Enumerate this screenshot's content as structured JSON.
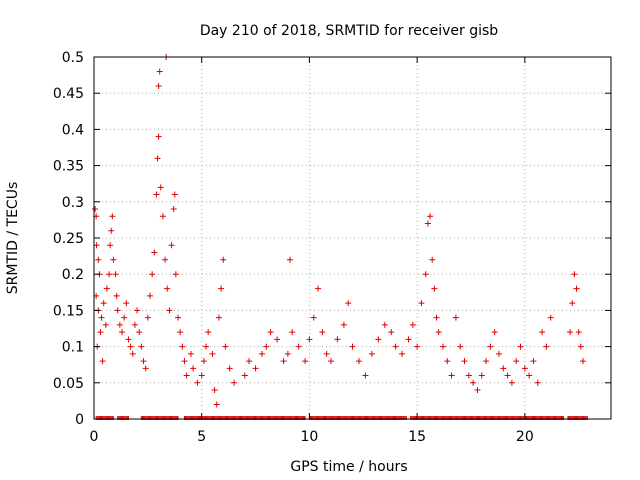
{
  "chart_data": {
    "type": "scatter",
    "title": "Day 210 of 2018, SRMTID for receiver gisb",
    "xlabel": "GPS time / hours",
    "ylabel": "SRMTID / TECUs",
    "xlim": [
      0,
      24
    ],
    "ylim": [
      0,
      0.5
    ],
    "x_ticks": [
      0,
      5,
      10,
      15,
      20
    ],
    "x_tick_labels": [
      "0",
      "5",
      "10",
      "15",
      "20"
    ],
    "y_ticks": [
      0,
      0.05,
      0.1,
      0.15,
      0.2,
      0.25,
      0.3,
      0.35,
      0.4,
      0.45,
      0.5
    ],
    "y_tick_labels": [
      "0",
      "0.05",
      "0.1",
      "0.15",
      "0.2",
      "0.25",
      "0.3",
      "0.35",
      "0.4",
      "0.45",
      "0.5"
    ],
    "grid": true,
    "marker": "+",
    "colors": {
      "series": "#e00000",
      "grid": "#b0b0b0",
      "axes": "#000000"
    },
    "series": [
      {
        "name": "SRMTID",
        "points": [
          [
            0.05,
            0.29
          ],
          [
            0.1,
            0.28
          ],
          [
            0.12,
            0.24
          ],
          [
            0.2,
            0.22
          ],
          [
            0.25,
            0.2
          ],
          [
            0.1,
            0.17
          ],
          [
            0.2,
            0.15
          ],
          [
            0.3,
            0.12
          ],
          [
            0.15,
            0.1
          ],
          [
            0.4,
            0.08
          ],
          [
            0.35,
            0.14
          ],
          [
            0.45,
            0.16
          ],
          [
            0.55,
            0.13
          ],
          [
            0.6,
            0.18
          ],
          [
            0.7,
            0.2
          ],
          [
            0.75,
            0.24
          ],
          [
            0.8,
            0.26
          ],
          [
            0.85,
            0.28
          ],
          [
            0.9,
            0.22
          ],
          [
            1.0,
            0.2
          ],
          [
            1.05,
            0.17
          ],
          [
            1.1,
            0.15
          ],
          [
            1.2,
            0.13
          ],
          [
            1.3,
            0.12
          ],
          [
            1.4,
            0.14
          ],
          [
            1.5,
            0.16
          ],
          [
            1.6,
            0.11
          ],
          [
            1.7,
            0.1
          ],
          [
            1.8,
            0.09
          ],
          [
            1.9,
            0.13
          ],
          [
            2.0,
            0.15
          ],
          [
            2.1,
            0.12
          ],
          [
            2.2,
            0.1
          ],
          [
            2.3,
            0.08
          ],
          [
            2.4,
            0.07
          ],
          [
            2.5,
            0.14
          ],
          [
            2.6,
            0.17
          ],
          [
            2.7,
            0.2
          ],
          [
            2.8,
            0.23
          ],
          [
            2.9,
            0.31
          ],
          [
            2.95,
            0.36
          ],
          [
            3.0,
            0.39
          ],
          [
            3.0,
            0.46
          ],
          [
            3.05,
            0.48
          ],
          [
            3.1,
            0.32
          ],
          [
            3.2,
            0.28
          ],
          [
            3.3,
            0.22
          ],
          [
            3.35,
            0.5
          ],
          [
            3.4,
            0.18
          ],
          [
            3.5,
            0.15
          ],
          [
            3.6,
            0.24
          ],
          [
            3.7,
            0.29
          ],
          [
            3.75,
            0.31
          ],
          [
            3.8,
            0.2
          ],
          [
            3.9,
            0.14
          ],
          [
            4.0,
            0.12
          ],
          [
            4.1,
            0.1
          ],
          [
            4.2,
            0.08
          ],
          [
            4.3,
            0.06
          ],
          [
            4.5,
            0.09
          ],
          [
            4.6,
            0.07
          ],
          [
            4.8,
            0.05
          ],
          [
            5.0,
            0.06
          ],
          [
            5.1,
            0.08
          ],
          [
            5.2,
            0.1
          ],
          [
            5.3,
            0.12
          ],
          [
            5.5,
            0.09
          ],
          [
            5.6,
            0.04
          ],
          [
            5.7,
            0.02
          ],
          [
            5.8,
            0.14
          ],
          [
            5.9,
            0.18
          ],
          [
            6.0,
            0.22
          ],
          [
            6.1,
            0.1
          ],
          [
            6.3,
            0.07
          ],
          [
            6.5,
            0.05
          ],
          [
            7.0,
            0.06
          ],
          [
            7.2,
            0.08
          ],
          [
            7.5,
            0.07
          ],
          [
            7.8,
            0.09
          ],
          [
            8.0,
            0.1
          ],
          [
            8.2,
            0.12
          ],
          [
            8.5,
            0.11
          ],
          [
            8.8,
            0.08
          ],
          [
            9.0,
            0.09
          ],
          [
            9.1,
            0.22
          ],
          [
            9.2,
            0.12
          ],
          [
            9.5,
            0.1
          ],
          [
            9.8,
            0.08
          ],
          [
            10.0,
            0.11
          ],
          [
            10.2,
            0.14
          ],
          [
            10.4,
            0.18
          ],
          [
            10.6,
            0.12
          ],
          [
            10.8,
            0.09
          ],
          [
            11.0,
            0.08
          ],
          [
            11.3,
            0.11
          ],
          [
            11.6,
            0.13
          ],
          [
            11.8,
            0.16
          ],
          [
            12.0,
            0.1
          ],
          [
            12.3,
            0.08
          ],
          [
            12.6,
            0.06
          ],
          [
            12.9,
            0.09
          ],
          [
            13.2,
            0.11
          ],
          [
            13.5,
            0.13
          ],
          [
            13.8,
            0.12
          ],
          [
            14.0,
            0.1
          ],
          [
            14.3,
            0.09
          ],
          [
            14.6,
            0.11
          ],
          [
            14.8,
            0.13
          ],
          [
            15.0,
            0.1
          ],
          [
            15.2,
            0.16
          ],
          [
            15.4,
            0.2
          ],
          [
            15.5,
            0.27
          ],
          [
            15.6,
            0.28
          ],
          [
            15.7,
            0.22
          ],
          [
            15.8,
            0.18
          ],
          [
            15.9,
            0.14
          ],
          [
            16.0,
            0.12
          ],
          [
            16.2,
            0.1
          ],
          [
            16.4,
            0.08
          ],
          [
            16.6,
            0.06
          ],
          [
            16.8,
            0.14
          ],
          [
            17.0,
            0.1
          ],
          [
            17.2,
            0.08
          ],
          [
            17.4,
            0.06
          ],
          [
            17.6,
            0.05
          ],
          [
            17.8,
            0.04
          ],
          [
            18.0,
            0.06
          ],
          [
            18.2,
            0.08
          ],
          [
            18.4,
            0.1
          ],
          [
            18.6,
            0.12
          ],
          [
            18.8,
            0.09
          ],
          [
            19.0,
            0.07
          ],
          [
            19.2,
            0.06
          ],
          [
            19.4,
            0.05
          ],
          [
            19.6,
            0.08
          ],
          [
            19.8,
            0.1
          ],
          [
            20.0,
            0.07
          ],
          [
            20.2,
            0.06
          ],
          [
            20.4,
            0.08
          ],
          [
            20.6,
            0.05
          ],
          [
            20.8,
            0.12
          ],
          [
            21.0,
            0.1
          ],
          [
            21.2,
            0.14
          ],
          [
            22.1,
            0.12
          ],
          [
            22.2,
            0.16
          ],
          [
            22.3,
            0.2
          ],
          [
            22.4,
            0.18
          ],
          [
            22.5,
            0.12
          ],
          [
            22.6,
            0.1
          ],
          [
            22.7,
            0.08
          ]
        ]
      }
    ],
    "zero_ticks_ranges": [
      [
        0.1,
        0.9
      ],
      [
        1.1,
        1.6
      ],
      [
        2.2,
        3.9
      ],
      [
        4.2,
        9.8
      ],
      [
        10.0,
        14.5
      ],
      [
        14.7,
        21.8
      ],
      [
        22.0,
        22.9
      ]
    ]
  }
}
